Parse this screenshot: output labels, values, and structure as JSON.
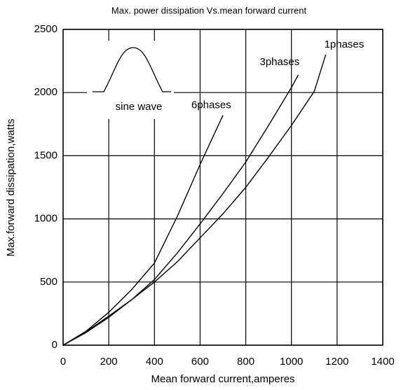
{
  "chart_data": {
    "type": "line",
    "title": "Max. power dissipation Vs.mean forward current",
    "x_label": "Mean forward  current,amperes",
    "y_label": "Max.forward dissipation,watts",
    "annotation": "sine wave",
    "series": [
      {
        "name": "6phases",
        "color": "#000000",
        "x": [
          0,
          100,
          200,
          300,
          400,
          500,
          600,
          700
        ],
        "values": [
          0,
          110,
          260,
          440,
          650,
          1020,
          1430,
          1820
        ]
      },
      {
        "name": "3phases",
        "color": "#000000",
        "x": [
          0,
          100,
          200,
          300,
          400,
          500,
          600,
          700,
          800,
          900,
          1000,
          1030
        ],
        "values": [
          0,
          100,
          220,
          360,
          520,
          730,
          960,
          1200,
          1450,
          1740,
          2040,
          2140
        ]
      },
      {
        "name": "1phases",
        "color": "#000000",
        "x": [
          0,
          100,
          200,
          300,
          400,
          500,
          600,
          700,
          800,
          900,
          1000,
          1100,
          1150
        ],
        "values": [
          0,
          105,
          230,
          360,
          500,
          660,
          850,
          1040,
          1250,
          1490,
          1740,
          2010,
          2300
        ]
      }
    ],
    "xlim": [
      0,
      1400
    ],
    "xticks": [
      0,
      200,
      400,
      600,
      800,
      1000,
      1200,
      1400
    ],
    "ylim": [
      0,
      2500
    ],
    "yticks": [
      0,
      500,
      1000,
      1500,
      2000,
      2500
    ],
    "grid": true
  }
}
